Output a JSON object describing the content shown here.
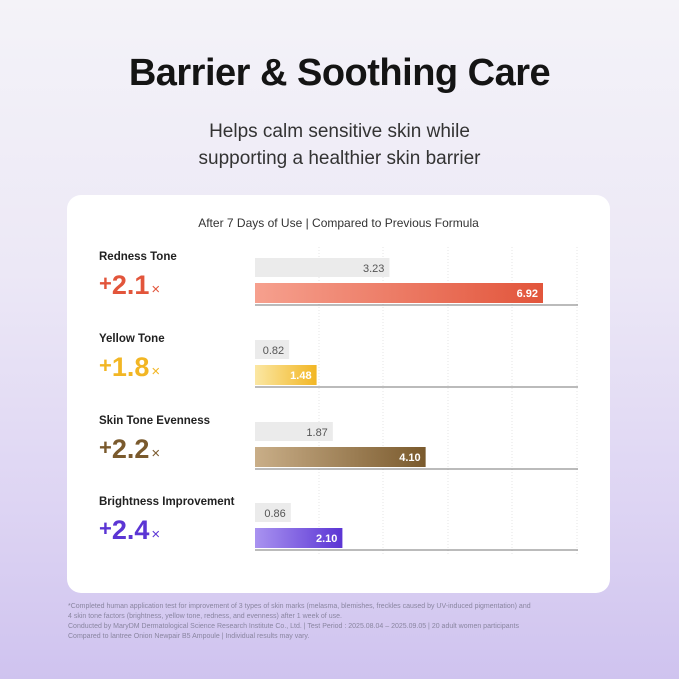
{
  "title": "Barrier & Soothing Care",
  "subtitle_line1": "Helps calm sensitive skin while",
  "subtitle_line2": "supporting a healthier skin barrier",
  "card_header": "After 7 Days of Use | Compared to Previous Formula",
  "plus_sign": "+",
  "times_sign": "×",
  "colors": {
    "previous_bar": "#ebebeb",
    "redness": "#e2553b",
    "yellow": "#f2b624",
    "evenness": "#7a5a2d",
    "brightness": "#5b35d4"
  },
  "chart_data": {
    "type": "bar",
    "orientation": "horizontal",
    "title": "After 7 Days of Use | Compared to Previous Formula",
    "categories": [
      "Redness Tone",
      "Yellow Tone",
      "Skin Tone Evenness",
      "Brightness Improvement"
    ],
    "series": [
      {
        "values": [
          3.23,
          0.82,
          1.87,
          0.86
        ],
        "labels": [
          "3.23",
          "0.82",
          "1.87",
          "0.86"
        ]
      },
      {
        "values": [
          6.92,
          1.48,
          4.1,
          2.1
        ],
        "labels": [
          "6.92",
          "1.48",
          "4.10",
          "2.10"
        ]
      }
    ],
    "improvement": [
      "2.1",
      "1.8",
      "2.2",
      "2.4"
    ],
    "grid": true
  },
  "footnote": [
    "*Completed human application test for improvement of 3 types of skin marks (melasma, blemishes, freckles caused by UV-induced pigmentation) and",
    "4 skin tone factors (brightness, yellow tone, redness, and evenness) after 1 week of use.",
    "Conducted by MaryDM Dermatological Science Research Institute Co., Ltd. | Test Period : 2025.08.04 – 2025.09.05 | 20 adult women participants",
    "Compared to lantree Onion Newpair B5 Ampoule | Individual results may vary."
  ]
}
